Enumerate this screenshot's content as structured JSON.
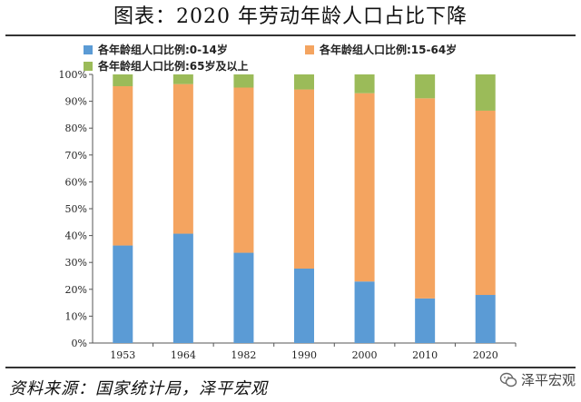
{
  "page": {
    "title": "图表：2020 年劳动年龄人口占比下降",
    "source": "资料来源：国家统计局，泽平宏观",
    "watermark": "泽平宏观",
    "watermark_icon": "wechat-icon"
  },
  "chart_data": {
    "type": "bar",
    "stacked": true,
    "categories": [
      "1953",
      "1964",
      "1982",
      "1990",
      "2000",
      "2010",
      "2020"
    ],
    "series": [
      {
        "name": "各年龄组人口比例:0-14岁",
        "color": "#5b9bd5",
        "values": [
          36.3,
          40.7,
          33.6,
          27.7,
          22.9,
          16.6,
          17.9
        ]
      },
      {
        "name": "各年龄组人口比例:15-64岁",
        "color": "#f4a460",
        "values": [
          59.3,
          55.7,
          61.5,
          66.7,
          70.1,
          74.5,
          68.6
        ]
      },
      {
        "name": "各年龄组人口比例:65岁及以上",
        "color": "#9bbb59",
        "values": [
          4.4,
          3.6,
          4.9,
          5.6,
          7.0,
          8.9,
          13.5
        ]
      }
    ],
    "ylim": [
      0,
      100
    ],
    "yticks": [
      "0%",
      "10%",
      "20%",
      "30%",
      "40%",
      "50%",
      "60%",
      "70%",
      "80%",
      "90%",
      "100%"
    ],
    "xlabel": "",
    "ylabel": "",
    "grid": false,
    "legend_position": "top"
  }
}
